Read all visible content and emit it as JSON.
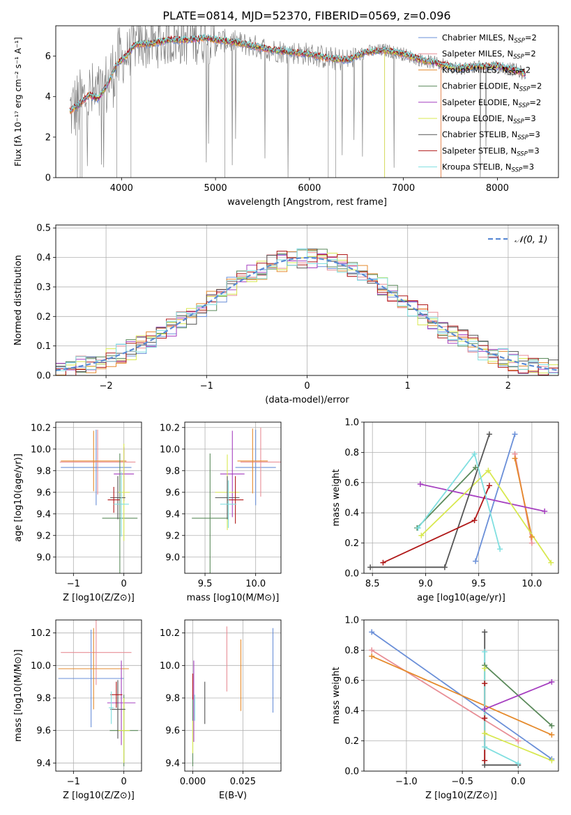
{
  "title": "PLATE=0814, MJD=52370, FIBERID=0569, z=0.096",
  "colors": {
    "models": [
      "#6a8fd8",
      "#e88e96",
      "#e58a2c",
      "#5b8a5b",
      "#a640c0",
      "#d8e850",
      "#555555",
      "#b01818",
      "#80dfe0"
    ],
    "grid": "#b0b0b0",
    "data_line": "#808080",
    "gaussian": "#5a8ad4"
  },
  "chart_data": [
    {
      "id": "spectrum",
      "type": "line",
      "xlabel": "wavelength [Angstrom, rest frame]",
      "ylabel": "Flux [fλ 10⁻¹⁷ erg cm⁻² s⁻¹ A⁻¹]",
      "xlim": [
        3300,
        8650
      ],
      "ylim": [
        0,
        7.5
      ],
      "xticks": [
        4000,
        5000,
        6000,
        7000,
        8000
      ],
      "yticks": [
        0,
        2,
        4,
        6
      ],
      "grid": false,
      "legend_position": "right",
      "legend": [
        {
          "label": "Chabrier MILES, N",
          "sub": "SSP",
          "suffix": "=2"
        },
        {
          "label": "Salpeter MILES, N",
          "sub": "SSP",
          "suffix": "=2"
        },
        {
          "label": "Kroupa MILES, N",
          "sub": "SSP",
          "suffix": "=2"
        },
        {
          "label": "Chabrier ELODIE, N",
          "sub": "SSP",
          "suffix": "=2"
        },
        {
          "label": "Salpeter ELODIE, N",
          "sub": "SSP",
          "suffix": "=2"
        },
        {
          "label": "Kroupa ELODIE, N",
          "sub": "SSP",
          "suffix": "=3"
        },
        {
          "label": "Chabrier STELIB, N",
          "sub": "SSP",
          "suffix": "=3"
        },
        {
          "label": "Salpeter STELIB, N",
          "sub": "SSP",
          "suffix": "=3"
        },
        {
          "label": "Kroupa STELIB, N",
          "sub": "SSP",
          "suffix": "=3"
        }
      ],
      "continuum": {
        "x": [
          3450,
          3550,
          3650,
          3750,
          3850,
          3950,
          4050,
          4150,
          4300,
          4500,
          4700,
          4900,
          5000,
          5200,
          5400,
          5600,
          5800,
          6000,
          6200,
          6400,
          6600,
          6800,
          7000,
          7200,
          7400,
          7600,
          7800,
          8000,
          8200,
          8300
        ],
        "y": [
          3.3,
          3.6,
          4.1,
          3.9,
          4.6,
          5.6,
          6.0,
          6.6,
          6.6,
          6.8,
          6.8,
          6.9,
          6.8,
          6.7,
          6.5,
          6.3,
          6.2,
          6.1,
          5.9,
          5.8,
          6.2,
          6.3,
          6.1,
          5.8,
          5.6,
          5.4,
          5.5,
          5.5,
          5.3,
          5.1
        ]
      }
    },
    {
      "id": "residuals",
      "type": "histogram",
      "xlabel": "(data-model)/error",
      "ylabel": "Normed distribution",
      "xlim": [
        -2.5,
        2.5
      ],
      "ylim": [
        0,
        0.51
      ],
      "xticks": [
        -2,
        -1,
        0,
        1,
        2
      ],
      "yticks": [
        0.0,
        0.1,
        0.2,
        0.3,
        0.4,
        0.5
      ],
      "grid": true,
      "legend_position": "top-right",
      "gaussian_label": "𝒩(0, 1)",
      "bin_width": 0.1,
      "bin_start": -2.5
    },
    {
      "id": "z_age",
      "type": "scatter",
      "xlabel": "Z [log10(Z/Z⊙)]",
      "ylabel": "age  [log10(age/yr)]",
      "xlim": [
        -1.35,
        0.35
      ],
      "ylim": [
        8.85,
        10.25
      ],
      "xticks": [
        -1,
        0
      ],
      "yticks": [
        9.0,
        9.2,
        9.4,
        9.6,
        9.8,
        10.0,
        10.2
      ],
      "grid": true,
      "points": [
        {
          "x": -0.55,
          "y": 9.83,
          "xerr": 0.7,
          "yerr": 0.35,
          "color": 0
        },
        {
          "x": -0.52,
          "y": 9.88,
          "xerr": 0.75,
          "yerr": 0.3,
          "color": 1
        },
        {
          "x": -0.6,
          "y": 9.89,
          "xerr": 0.65,
          "yerr": 0.28,
          "color": 2
        },
        {
          "x": -0.08,
          "y": 9.36,
          "xerr": 0.35,
          "yerr": 0.6,
          "color": 3
        },
        {
          "x": 0.0,
          "y": 9.77,
          "xerr": 0.2,
          "yerr": 0.25,
          "color": 4
        },
        {
          "x": 0.0,
          "y": 9.6,
          "xerr": 0.12,
          "yerr": 0.45,
          "color": 5
        },
        {
          "x": -0.12,
          "y": 9.55,
          "xerr": 0.15,
          "yerr": 0.2,
          "color": 6
        },
        {
          "x": -0.2,
          "y": 9.53,
          "xerr": 0.12,
          "yerr": 0.12,
          "color": 7
        },
        {
          "x": -0.05,
          "y": 9.49,
          "xerr": 0.15,
          "yerr": 0.3,
          "color": 8
        }
      ]
    },
    {
      "id": "mass_age",
      "type": "scatter",
      "xlabel": "mass [log10(M/M⊙)]",
      "ylabel": "",
      "xlim": [
        9.3,
        10.25
      ],
      "ylim": [
        8.85,
        10.25
      ],
      "xticks": [
        9.5,
        10.0
      ],
      "yticks": [
        9.0,
        9.2,
        9.4,
        9.6,
        9.8,
        10.0,
        10.2
      ],
      "grid": true,
      "points": [
        {
          "x": 10.0,
          "y": 9.83,
          "xerr": 0.2,
          "yerr": 0.35,
          "color": 0
        },
        {
          "x": 10.05,
          "y": 9.88,
          "xerr": 0.2,
          "yerr": 0.32,
          "color": 1
        },
        {
          "x": 9.97,
          "y": 9.89,
          "xerr": 0.15,
          "yerr": 0.3,
          "color": 2
        },
        {
          "x": 9.55,
          "y": 9.36,
          "xerr": 0.18,
          "yerr": 0.6,
          "color": 3
        },
        {
          "x": 9.77,
          "y": 9.77,
          "xerr": 0.12,
          "yerr": 0.4,
          "color": 4
        },
        {
          "x": 9.72,
          "y": 9.6,
          "xerr": 0.12,
          "yerr": 0.35,
          "color": 5
        },
        {
          "x": 9.72,
          "y": 9.55,
          "xerr": 0.12,
          "yerr": 0.2,
          "color": 6
        },
        {
          "x": 9.8,
          "y": 9.53,
          "xerr": 0.08,
          "yerr": 0.22,
          "color": 7
        },
        {
          "x": 9.73,
          "y": 9.49,
          "xerr": 0.08,
          "yerr": 0.22,
          "color": 8
        }
      ]
    },
    {
      "id": "age_weight",
      "type": "line",
      "xlabel": "age  [log10(age/yr)]",
      "ylabel": "mass weight",
      "xlim": [
        8.42,
        10.25
      ],
      "ylim": [
        0,
        1.0
      ],
      "xticks": [
        8.5,
        9.0,
        9.5,
        10.0
      ],
      "yticks": [
        0.0,
        0.2,
        0.4,
        0.6,
        0.8,
        1.0
      ],
      "grid": true,
      "series": [
        {
          "color": 0,
          "x": [
            9.47,
            9.84
          ],
          "y": [
            0.08,
            0.92
          ]
        },
        {
          "color": 1,
          "x": [
            9.84,
            10.0
          ],
          "y": [
            0.79,
            0.2
          ]
        },
        {
          "color": 2,
          "x": [
            9.84,
            10.0
          ],
          "y": [
            0.76,
            0.24
          ]
        },
        {
          "color": 3,
          "x": [
            8.92,
            9.47
          ],
          "y": [
            0.3,
            0.7
          ]
        },
        {
          "color": 4,
          "x": [
            8.95,
            10.12
          ],
          "y": [
            0.59,
            0.41
          ]
        },
        {
          "color": 5,
          "x": [
            8.96,
            9.59,
            10.18
          ],
          "y": [
            0.25,
            0.68,
            0.07
          ]
        },
        {
          "color": 6,
          "x": [
            8.48,
            9.18,
            9.6
          ],
          "y": [
            0.04,
            0.04,
            0.92
          ]
        },
        {
          "color": 7,
          "x": [
            8.6,
            9.46,
            9.6
          ],
          "y": [
            0.07,
            0.35,
            0.58
          ]
        },
        {
          "color": 8,
          "x": [
            8.93,
            9.46,
            9.7
          ],
          "y": [
            0.3,
            0.79,
            0.16
          ]
        }
      ]
    },
    {
      "id": "z_mass",
      "type": "scatter",
      "xlabel": "Z [log10(Z/Z⊙)]",
      "ylabel": "mass [log10(M/M⊙)]",
      "xlim": [
        -1.35,
        0.35
      ],
      "ylim": [
        9.35,
        10.28
      ],
      "xticks": [
        -1,
        0
      ],
      "yticks": [
        9.4,
        9.6,
        9.8,
        10.0,
        10.2
      ],
      "grid": true,
      "points": [
        {
          "x": -0.65,
          "y": 9.92,
          "xerr": 0.65,
          "yerr": 0.3,
          "color": 0
        },
        {
          "x": -0.55,
          "y": 10.08,
          "xerr": 0.7,
          "yerr": 0.2,
          "color": 1
        },
        {
          "x": -0.6,
          "y": 9.98,
          "xerr": 0.7,
          "yerr": 0.25,
          "color": 2
        },
        {
          "x": 0.0,
          "y": 9.6,
          "xerr": 0.28,
          "yerr": 0.22,
          "color": 3
        },
        {
          "x": -0.05,
          "y": 9.77,
          "xerr": 0.28,
          "yerr": 0.26,
          "color": 4
        },
        {
          "x": 0.0,
          "y": 9.6,
          "xerr": 0.12,
          "yerr": 0.2,
          "color": 5
        },
        {
          "x": -0.12,
          "y": 9.73,
          "xerr": 0.15,
          "yerr": 0.18,
          "color": 6
        },
        {
          "x": -0.15,
          "y": 9.82,
          "xerr": 0.12,
          "yerr": 0.08,
          "color": 7
        },
        {
          "x": -0.25,
          "y": 9.74,
          "xerr": 0.05,
          "yerr": 0.1,
          "color": 8
        }
      ]
    },
    {
      "id": "ebv_mass",
      "type": "scatter",
      "xlabel": "E(B-V)",
      "ylabel": "",
      "xlim": [
        -0.004,
        0.044
      ],
      "ylim": [
        9.35,
        10.28
      ],
      "xticks": [
        0.0,
        0.025
      ],
      "xtick_labels": [
        "0.000",
        "0.025"
      ],
      "yticks": [
        9.4,
        9.6,
        9.8,
        10.0,
        10.2
      ],
      "grid": true,
      "points": [
        {
          "x": 0.04,
          "y": 9.97,
          "yerr": 0.26,
          "color": 0
        },
        {
          "x": 0.017,
          "y": 10.04,
          "yerr": 0.2,
          "color": 1
        },
        {
          "x": 0.024,
          "y": 9.94,
          "yerr": 0.22,
          "color": 2
        },
        {
          "x": 0.0,
          "y": 9.6,
          "yerr": 0.22,
          "color": 3
        },
        {
          "x": 0.0005,
          "y": 9.78,
          "yerr": 0.25,
          "color": 4
        },
        {
          "x": 0.0,
          "y": 9.56,
          "yerr": 0.1,
          "color": 5
        },
        {
          "x": 0.006,
          "y": 9.77,
          "yerr": 0.13,
          "color": 6
        },
        {
          "x": 0.0,
          "y": 9.87,
          "yerr": 0.08,
          "color": 7
        },
        {
          "x": 0.001,
          "y": 9.74,
          "yerr": 0.08,
          "color": 8
        }
      ]
    },
    {
      "id": "z_weight",
      "type": "line",
      "xlabel": "Z [log10(Z/Z⊙)]",
      "ylabel": "mass weight",
      "xlim": [
        -1.38,
        0.36
      ],
      "ylim": [
        0,
        1.0
      ],
      "xticks": [
        -1.0,
        -0.5,
        0.0
      ],
      "yticks": [
        0.0,
        0.2,
        0.4,
        0.6,
        0.8,
        1.0
      ],
      "grid": true,
      "series": [
        {
          "color": 0,
          "x": [
            -1.31,
            0.3
          ],
          "y": [
            0.92,
            0.08
          ]
        },
        {
          "color": 1,
          "x": [
            -1.31,
            0.0
          ],
          "y": [
            0.8,
            0.2
          ]
        },
        {
          "color": 2,
          "x": [
            -1.31,
            0.3
          ],
          "y": [
            0.76,
            0.24
          ]
        },
        {
          "color": 3,
          "x": [
            -0.3,
            0.3
          ],
          "y": [
            0.7,
            0.3
          ]
        },
        {
          "color": 4,
          "x": [
            -0.3,
            0.3
          ],
          "y": [
            0.41,
            0.59
          ]
        },
        {
          "color": 5,
          "x": [
            -0.3,
            -0.3,
            0.3
          ],
          "y": [
            0.68,
            0.25,
            0.07
          ]
        },
        {
          "color": 6,
          "x": [
            0.0,
            -0.3,
            -0.3
          ],
          "y": [
            0.04,
            0.04,
            0.92
          ]
        },
        {
          "color": 7,
          "x": [
            -0.3,
            -0.3,
            -0.3
          ],
          "y": [
            0.07,
            0.35,
            0.58
          ]
        },
        {
          "color": 8,
          "x": [
            -0.3,
            -0.3,
            0.0
          ],
          "y": [
            0.79,
            0.16,
            0.05
          ]
        }
      ]
    }
  ]
}
